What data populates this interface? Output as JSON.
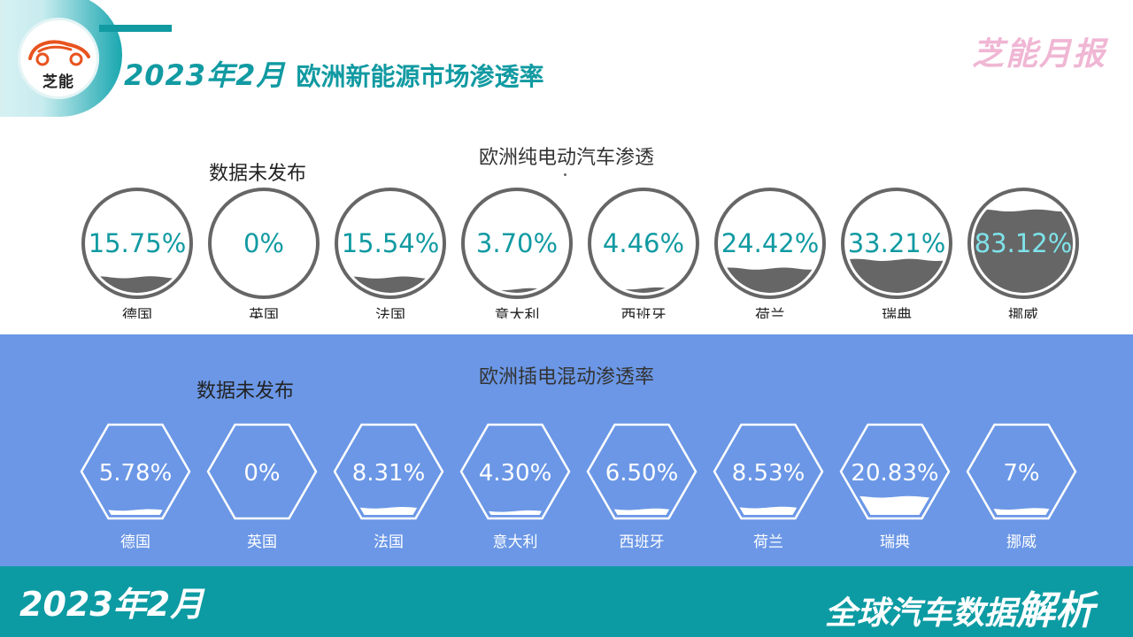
{
  "header": {
    "logo_text": "芝能",
    "title_date": "2023年2月",
    "title_text": "欧洲新能源市场渗透率",
    "brand": "芝能月报"
  },
  "bev": {
    "title": "欧洲纯电动汽车渗透",
    "note": "数据未发布"
  },
  "phev": {
    "title": "欧洲插电混动渗透率",
    "note": "数据未发布"
  },
  "footer": {
    "date": "2023年2月",
    "text": "全球汽车数据",
    "text_big": "解析"
  },
  "colors": {
    "teal": "#119aa2",
    "gray_fill": "#666666",
    "blue_band": "#6b97e6",
    "brand_pink": "#f0b6d4"
  },
  "chart_data": [
    {
      "type": "gauge",
      "title": "欧洲纯电动汽车渗透",
      "categories": [
        "德国",
        "英国",
        "法国",
        "意大利",
        "西班牙",
        "荷兰",
        "瑞典",
        "挪威"
      ],
      "labels": [
        "15.75%",
        "0%",
        "15.54%",
        "3.70%",
        "4.46%",
        "24.42%",
        "33.21%",
        "83.12%"
      ],
      "values": [
        15.75,
        0,
        15.54,
        3.7,
        4.46,
        24.42,
        33.21,
        83.12
      ],
      "ylim": [
        0,
        100
      ],
      "shape": "circle"
    },
    {
      "type": "gauge",
      "title": "欧洲插电混动渗透率",
      "categories": [
        "德国",
        "英国",
        "法国",
        "意大利",
        "西班牙",
        "荷兰",
        "瑞典",
        "挪威"
      ],
      "labels": [
        "5.78%",
        "0%",
        "8.31%",
        "4.30%",
        "6.50%",
        "8.53%",
        "20.83%",
        "7%"
      ],
      "values": [
        5.78,
        0,
        8.31,
        4.3,
        6.5,
        8.53,
        20.83,
        7
      ],
      "ylim": [
        0,
        100
      ],
      "shape": "hexagon"
    }
  ]
}
